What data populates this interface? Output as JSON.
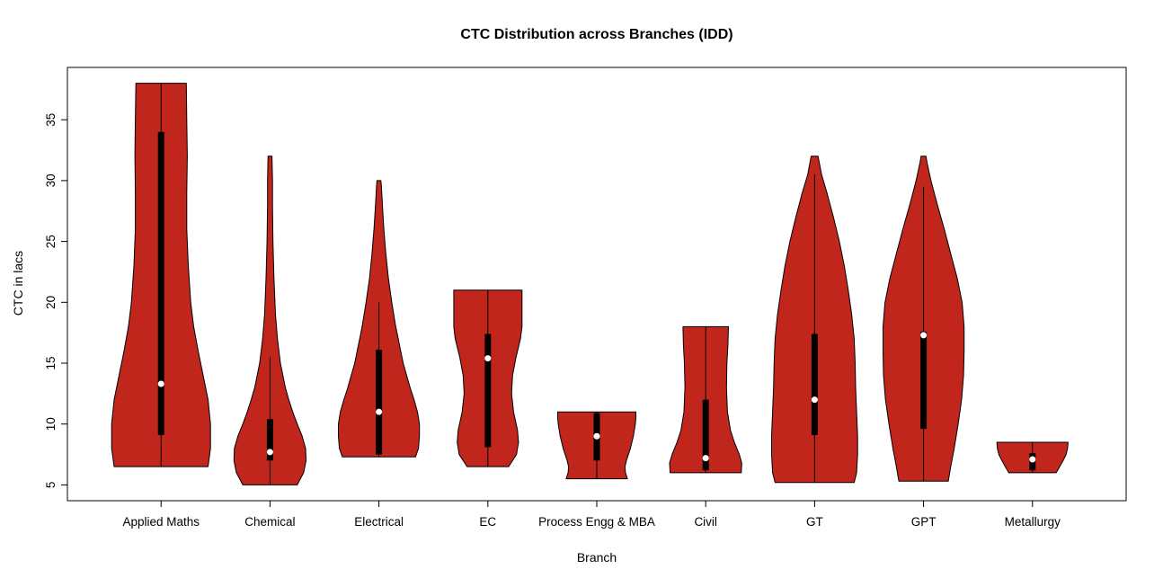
{
  "page": {
    "background": "#ffffff"
  },
  "chart_data": {
    "type": "violin",
    "title": "CTC Distribution across Branches (IDD)",
    "xlabel": "Branch",
    "ylabel": "CTC in lacs",
    "ylim": [
      3.7,
      39.3
    ],
    "yticks": [
      5,
      10,
      15,
      20,
      25,
      30,
      35
    ],
    "grid": false,
    "legend": "none",
    "colors": {
      "violin_fill": "#C1261D",
      "violin_stroke": "#000000",
      "box": "#000000",
      "median_dot": "#FFFFFF",
      "axis": "#000000"
    },
    "categories": [
      "Applied Maths",
      "Chemical",
      "Electrical",
      "EC",
      "Process Engg & MBA",
      "Civil",
      "GT",
      "GPT",
      "Metallurgy"
    ],
    "violins": [
      {
        "label": "Applied Maths",
        "min": 6.5,
        "max": 38,
        "q1": 9.1,
        "q3": 34,
        "median": 13.3,
        "whisker_low": 6.5,
        "whisker_high": 38,
        "shape": [
          [
            6.5,
            0.95
          ],
          [
            8,
            1.0
          ],
          [
            10,
            1.0
          ],
          [
            12,
            0.95
          ],
          [
            14,
            0.85
          ],
          [
            16,
            0.75
          ],
          [
            18,
            0.66
          ],
          [
            20,
            0.6
          ],
          [
            23,
            0.55
          ],
          [
            26,
            0.52
          ],
          [
            29,
            0.52
          ],
          [
            32,
            0.53
          ],
          [
            35,
            0.52
          ],
          [
            38,
            0.51
          ]
        ]
      },
      {
        "label": "Chemical",
        "min": 5,
        "max": 32,
        "q1": 7.0,
        "q3": 10.4,
        "median": 7.7,
        "whisker_low": 5,
        "whisker_high": 15.5,
        "shape": [
          [
            5,
            0.55
          ],
          [
            6,
            0.68
          ],
          [
            7,
            0.73
          ],
          [
            8,
            0.72
          ],
          [
            9,
            0.65
          ],
          [
            10,
            0.55
          ],
          [
            11,
            0.46
          ],
          [
            12,
            0.38
          ],
          [
            13,
            0.31
          ],
          [
            15,
            0.21
          ],
          [
            17,
            0.15
          ],
          [
            19,
            0.11
          ],
          [
            22,
            0.08
          ],
          [
            25,
            0.06
          ],
          [
            28,
            0.05
          ],
          [
            30,
            0.05
          ],
          [
            32,
            0.04
          ]
        ]
      },
      {
        "label": "Electrical",
        "min": 7.3,
        "max": 30,
        "q1": 7.5,
        "q3": 16.1,
        "median": 11.0,
        "whisker_low": 7.3,
        "whisker_high": 20,
        "shape": [
          [
            7.3,
            0.74
          ],
          [
            8,
            0.8
          ],
          [
            9,
            0.82
          ],
          [
            10,
            0.82
          ],
          [
            11,
            0.78
          ],
          [
            12,
            0.71
          ],
          [
            13,
            0.63
          ],
          [
            14,
            0.56
          ],
          [
            15,
            0.49
          ],
          [
            16,
            0.44
          ],
          [
            17,
            0.39
          ],
          [
            18,
            0.34
          ],
          [
            19,
            0.3
          ],
          [
            20,
            0.26
          ],
          [
            22,
            0.19
          ],
          [
            24,
            0.14
          ],
          [
            26,
            0.1
          ],
          [
            28,
            0.07
          ],
          [
            29.5,
            0.05
          ],
          [
            30,
            0.04
          ]
        ]
      },
      {
        "label": "EC",
        "min": 6.5,
        "max": 21,
        "q1": 8.1,
        "q3": 17.4,
        "median": 15.4,
        "whisker_low": 6.5,
        "whisker_high": 21,
        "shape": [
          [
            6.5,
            0.42
          ],
          [
            7.5,
            0.58
          ],
          [
            8.5,
            0.62
          ],
          [
            9.5,
            0.6
          ],
          [
            11,
            0.52
          ],
          [
            12.5,
            0.48
          ],
          [
            14,
            0.5
          ],
          [
            15.5,
            0.57
          ],
          [
            17,
            0.66
          ],
          [
            18,
            0.69
          ],
          [
            19.5,
            0.69
          ],
          [
            21,
            0.69
          ]
        ]
      },
      {
        "label": "Process Engg & MBA",
        "min": 5.5,
        "max": 11,
        "q1": 7.0,
        "q3": 10.9,
        "median": 9.0,
        "whisker_low": 5.5,
        "whisker_high": 11,
        "shape": [
          [
            5.5,
            0.62
          ],
          [
            6,
            0.58
          ],
          [
            6.5,
            0.57
          ],
          [
            7,
            0.6
          ],
          [
            8,
            0.68
          ],
          [
            9,
            0.74
          ],
          [
            10,
            0.78
          ],
          [
            10.5,
            0.79
          ],
          [
            11,
            0.79
          ]
        ]
      },
      {
        "label": "Civil",
        "min": 6,
        "max": 18,
        "q1": 6.2,
        "q3": 12.0,
        "median": 7.2,
        "whisker_low": 6,
        "whisker_high": 18,
        "shape": [
          [
            6,
            0.72
          ],
          [
            6.8,
            0.73
          ],
          [
            7.5,
            0.68
          ],
          [
            8.5,
            0.58
          ],
          [
            9.5,
            0.5
          ],
          [
            11,
            0.44
          ],
          [
            13,
            0.42
          ],
          [
            15,
            0.43
          ],
          [
            16.5,
            0.45
          ],
          [
            18,
            0.46
          ]
        ]
      },
      {
        "label": "GT",
        "min": 5.2,
        "max": 32,
        "q1": 9.1,
        "q3": 17.4,
        "median": 12.0,
        "whisker_low": 5.2,
        "whisker_high": 30.5,
        "shape": [
          [
            5.2,
            0.8
          ],
          [
            6,
            0.85
          ],
          [
            7.5,
            0.87
          ],
          [
            9,
            0.87
          ],
          [
            11,
            0.85
          ],
          [
            13,
            0.83
          ],
          [
            15,
            0.82
          ],
          [
            17,
            0.8
          ],
          [
            19,
            0.75
          ],
          [
            21,
            0.68
          ],
          [
            23,
            0.6
          ],
          [
            25,
            0.5
          ],
          [
            27,
            0.38
          ],
          [
            29,
            0.25
          ],
          [
            30.5,
            0.14
          ],
          [
            32,
            0.07
          ]
        ]
      },
      {
        "label": "GPT",
        "min": 5.3,
        "max": 32,
        "q1": 9.6,
        "q3": 17.6,
        "median": 17.3,
        "whisker_low": 5.3,
        "whisker_high": 29.5,
        "shape": [
          [
            5.3,
            0.5
          ],
          [
            6.5,
            0.55
          ],
          [
            8,
            0.62
          ],
          [
            10,
            0.7
          ],
          [
            12,
            0.77
          ],
          [
            14,
            0.81
          ],
          [
            16,
            0.82
          ],
          [
            18,
            0.82
          ],
          [
            20,
            0.78
          ],
          [
            22,
            0.68
          ],
          [
            24,
            0.55
          ],
          [
            26,
            0.42
          ],
          [
            28,
            0.28
          ],
          [
            30,
            0.15
          ],
          [
            31.5,
            0.07
          ],
          [
            32,
            0.05
          ]
        ]
      },
      {
        "label": "Metallurgy",
        "min": 6,
        "max": 8.5,
        "q1": 6.2,
        "q3": 7.6,
        "median": 7.1,
        "whisker_low": 6,
        "whisker_high": 8.5,
        "shape": [
          [
            6,
            0.48
          ],
          [
            6.5,
            0.55
          ],
          [
            7,
            0.62
          ],
          [
            7.5,
            0.68
          ],
          [
            8,
            0.71
          ],
          [
            8.5,
            0.72
          ]
        ]
      }
    ]
  }
}
